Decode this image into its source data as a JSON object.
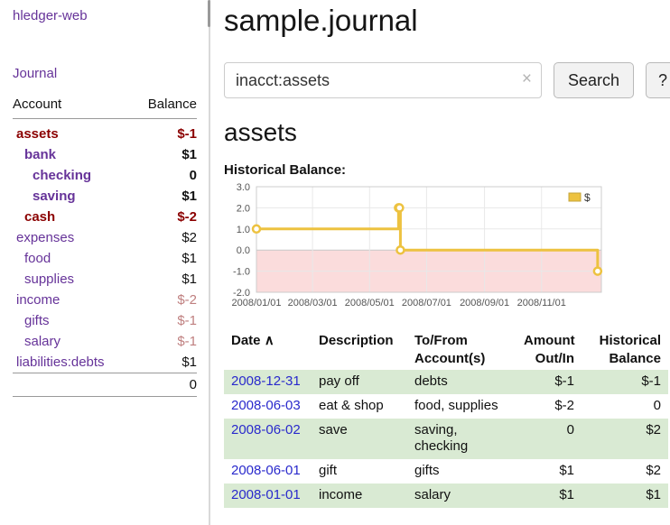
{
  "colors": {
    "purple": "#663399",
    "link_blue": "#2929cc",
    "negative": "#8b0000",
    "negative_muted": "#bf7f7f",
    "row_green": "#d9ead3",
    "series_gold": "#edc240"
  },
  "sidebar": {
    "app_title": "hledger-web",
    "journal_link": "Journal",
    "accounts": {
      "headers": {
        "account": "Account",
        "balance": "Balance"
      },
      "rows": [
        {
          "name": "assets",
          "balance": "$-1",
          "indent": 0,
          "bold": true,
          "name_color": "negative",
          "balance_color": "negative"
        },
        {
          "name": "bank",
          "balance": "$1",
          "indent": 1,
          "bold": true,
          "name_color": "purple",
          "balance_color": "normal"
        },
        {
          "name": "checking",
          "balance": "0",
          "indent": 2,
          "bold": true,
          "name_color": "purple",
          "balance_color": "normal"
        },
        {
          "name": "saving",
          "balance": "$1",
          "indent": 2,
          "bold": true,
          "name_color": "purple",
          "balance_color": "normal"
        },
        {
          "name": "cash",
          "balance": "$-2",
          "indent": 1,
          "bold": true,
          "name_color": "negative",
          "balance_color": "negative"
        },
        {
          "name": "expenses",
          "balance": "$2",
          "indent": 0,
          "bold": false,
          "name_color": "purple",
          "balance_color": "normal"
        },
        {
          "name": "food",
          "balance": "$1",
          "indent": 1,
          "bold": false,
          "name_color": "purple",
          "balance_color": "normal"
        },
        {
          "name": "supplies",
          "balance": "$1",
          "indent": 1,
          "bold": false,
          "name_color": "purple",
          "balance_color": "normal"
        },
        {
          "name": "income",
          "balance": "$-2",
          "indent": 0,
          "bold": false,
          "name_color": "purple",
          "balance_color": "muted"
        },
        {
          "name": "gifts",
          "balance": "$-1",
          "indent": 1,
          "bold": false,
          "name_color": "purple",
          "balance_color": "muted"
        },
        {
          "name": "salary",
          "balance": "$-1",
          "indent": 1,
          "bold": false,
          "name_color": "purple",
          "balance_color": "muted"
        },
        {
          "name": "liabilities:debts",
          "balance": "$1",
          "indent": 0,
          "bold": false,
          "name_color": "purple",
          "balance_color": "normal"
        }
      ],
      "total": "0"
    }
  },
  "main": {
    "title": "sample.journal",
    "search": {
      "value": "inacct:assets",
      "clear_icon": "×",
      "search_button": "Search",
      "help_button": "?"
    },
    "account_heading": "assets",
    "chart_title": "Historical Balance:"
  },
  "chart_data": {
    "type": "line",
    "style": "step",
    "title": "Historical Balance",
    "series": [
      {
        "name": "$",
        "color": "#edc240",
        "points": [
          [
            "2008-01-01",
            1
          ],
          [
            "2008-06-01",
            2
          ],
          [
            "2008-06-02",
            2
          ],
          [
            "2008-06-03",
            0
          ],
          [
            "2008-12-31",
            -1
          ]
        ]
      }
    ],
    "x_ticks": [
      "2008/01/01",
      "2008/03/01",
      "2008/05/01",
      "2008/07/01",
      "2008/09/01",
      "2008/11/01"
    ],
    "y_ticks": [
      "3.0",
      "2.0",
      "1.0",
      "0.0",
      "-1.0",
      "-2.0"
    ],
    "ylim": [
      -2,
      3
    ],
    "xlim": [
      "2008-01-01",
      "2009-01-04"
    ],
    "negative_fill": "#fbdcdc",
    "grid": true,
    "legend": {
      "position": "top-right",
      "items": [
        {
          "label": "$",
          "color": "#edc240"
        }
      ]
    }
  },
  "register": {
    "headers": {
      "date": "Date",
      "sort_icon": "∧",
      "description": "Description",
      "account_line1": "To/From",
      "account_line2": "Account(s)",
      "amount_line1": "Amount",
      "amount_line2": "Out/In",
      "balance_line1": "Historical",
      "balance_line2": "Balance"
    },
    "rows": [
      {
        "date": "2008-12-31",
        "description": "pay off",
        "accounts": "debts",
        "amount": "$-1",
        "amount_negative": true,
        "balance": "$-1",
        "balance_negative": true,
        "shaded": true
      },
      {
        "date": "2008-06-03",
        "description": "eat & shop",
        "accounts": "food, supplies",
        "amount": "$-2",
        "amount_negative": true,
        "balance": "0",
        "balance_negative": false,
        "shaded": false
      },
      {
        "date": "2008-06-02",
        "description": "save",
        "accounts": "saving, checking",
        "amount": "0",
        "amount_negative": false,
        "balance": "$2",
        "balance_negative": false,
        "shaded": true
      },
      {
        "date": "2008-06-01",
        "description": "gift",
        "accounts": "gifts",
        "amount": "$1",
        "amount_negative": false,
        "balance": "$2",
        "balance_negative": false,
        "shaded": false
      },
      {
        "date": "2008-01-01",
        "description": "income",
        "accounts": "salary",
        "amount": "$1",
        "amount_negative": false,
        "balance": "$1",
        "balance_negative": false,
        "shaded": true
      }
    ]
  }
}
